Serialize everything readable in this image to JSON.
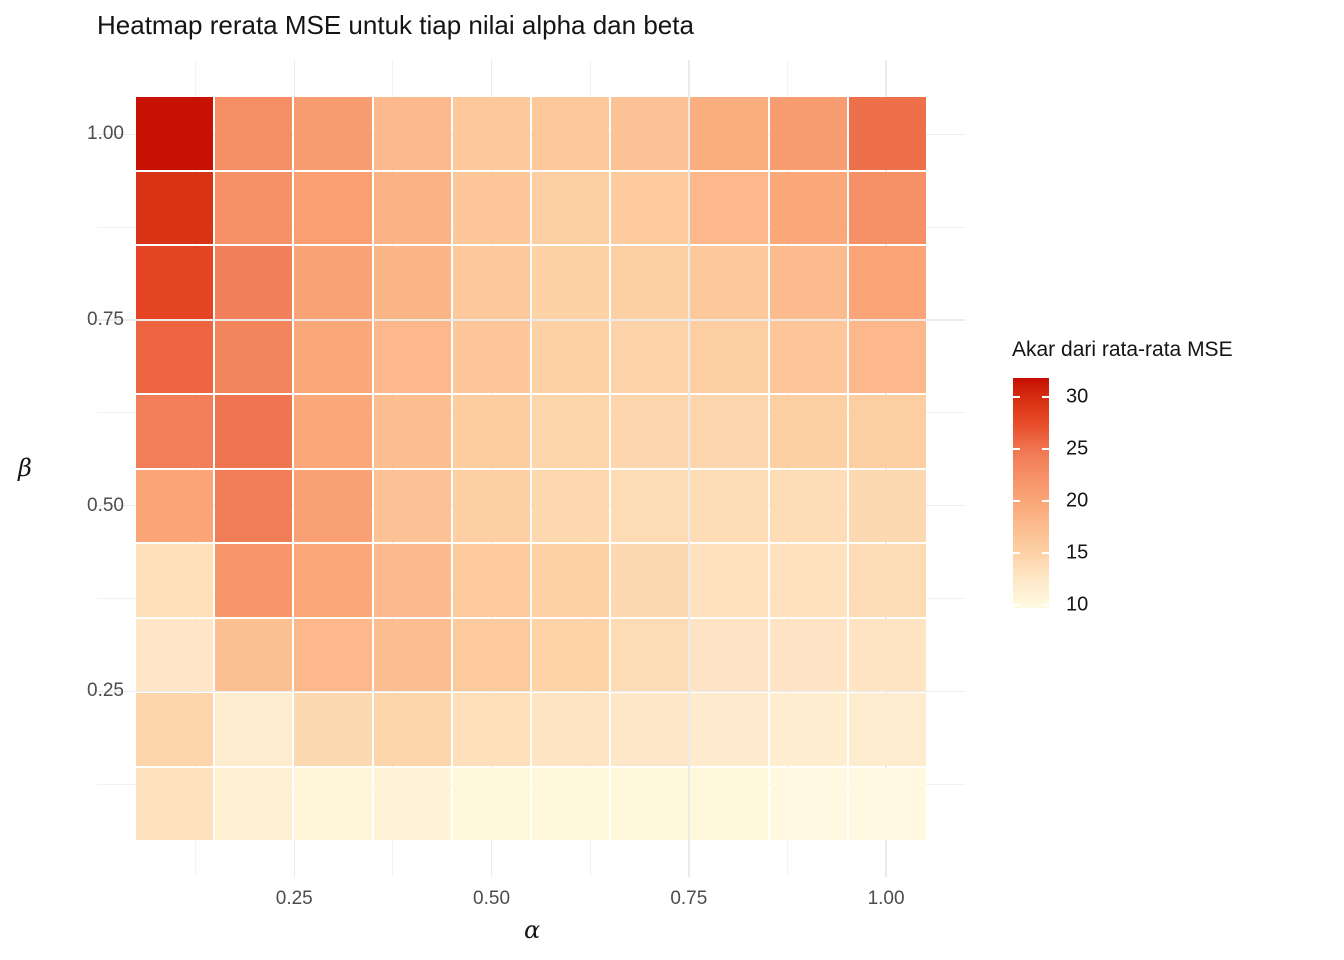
{
  "figure": {
    "title": "Heatmap rerata MSE untuk tiap nilai alpha dan beta"
  },
  "chart_data": {
    "type": "heatmap",
    "title": "Heatmap rerata MSE untuk tiap nilai alpha dan beta",
    "xlabel": "α",
    "ylabel": "β",
    "x_values": [
      0.1,
      0.2,
      0.3,
      0.4,
      0.5,
      0.6,
      0.7,
      0.8,
      0.9,
      1.0
    ],
    "y_values_top_to_bottom": [
      1.0,
      0.9,
      0.8,
      0.7,
      0.6,
      0.5,
      0.4,
      0.3,
      0.2,
      0.1
    ],
    "x_axis_tick_labels": [
      "0.25",
      "0.50",
      "0.75",
      "1.00"
    ],
    "x_axis_tick_values": [
      0.25,
      0.5,
      0.75,
      1.0
    ],
    "y_axis_tick_labels": [
      "0.25",
      "0.50",
      "0.75",
      "1.00"
    ],
    "y_axis_tick_values": [
      0.25,
      0.5,
      0.75,
      1.0
    ],
    "grid_minor_values": [
      0.125,
      0.375,
      0.625,
      0.875
    ],
    "values_sqrt_mean_mse_rows_beta_desc": [
      [
        31.6,
        22.6,
        21.0,
        17.8,
        16.0,
        16.1,
        16.8,
        19.1,
        21.0,
        25.3
      ],
      [
        29.5,
        22.4,
        20.8,
        18.6,
        16.2,
        15.5,
        15.8,
        17.9,
        19.8,
        22.3
      ],
      [
        28.0,
        23.8,
        20.3,
        18.2,
        16.0,
        15.0,
        15.2,
        16.1,
        17.6,
        20.2
      ],
      [
        26.0,
        23.5,
        19.9,
        18.0,
        16.2,
        15.1,
        14.8,
        15.4,
        16.2,
        17.9
      ],
      [
        24.0,
        25.0,
        19.9,
        17.4,
        15.6,
        14.7,
        14.5,
        14.5,
        15.2,
        15.5
      ],
      [
        20.2,
        24.2,
        20.6,
        16.8,
        15.3,
        14.4,
        13.9,
        13.8,
        13.8,
        14.2
      ],
      [
        13.5,
        21.8,
        19.8,
        17.7,
        15.9,
        15.1,
        14.2,
        13.2,
        13.2,
        13.9
      ],
      [
        12.6,
        17.0,
        18.0,
        17.3,
        15.9,
        14.9,
        13.9,
        12.8,
        12.8,
        12.9
      ],
      [
        14.7,
        11.8,
        14.2,
        14.6,
        13.5,
        12.9,
        12.5,
        11.9,
        11.6,
        11.8
      ],
      [
        13.1,
        11.2,
        10.5,
        10.6,
        10.2,
        10.1,
        10.1,
        10.0,
        9.8,
        9.8
      ]
    ],
    "legend": {
      "title": "Akar dari rata-rata MSE",
      "tick_labels": [
        "30",
        "25",
        "20",
        "15",
        "10"
      ],
      "tick_values": [
        30,
        25,
        20,
        15,
        10
      ],
      "domain": [
        9.7,
        31.8
      ]
    },
    "color_scale": {
      "stops": [
        {
          "v": 9.5,
          "c": "#FFFBE8"
        },
        {
          "v": 10.0,
          "c": "#FFF8DC"
        },
        {
          "v": 12.5,
          "c": "#FEE7C8"
        },
        {
          "v": 15.0,
          "c": "#FDD2A6"
        },
        {
          "v": 17.5,
          "c": "#FCBC8E"
        },
        {
          "v": 20.0,
          "c": "#FAA678"
        },
        {
          "v": 22.5,
          "c": "#F68F66"
        },
        {
          "v": 25.0,
          "c": "#EF7550"
        },
        {
          "v": 27.5,
          "c": "#E84A28"
        },
        {
          "v": 30.0,
          "c": "#D52D10"
        },
        {
          "v": 32.0,
          "c": "#C50A02"
        }
      ]
    },
    "style": {
      "background": "#FFFFFF",
      "grid_major_color": "#EBEBEB",
      "grid_minor_color": "#F2F2F2",
      "axis_text_color": "#4D4D4D",
      "title_color": "#141414",
      "tile_border_color": "#FFFFFF"
    },
    "layout_hints": {
      "legend_position": "right",
      "grid": "majors and minors visible in panel expansion margins only",
      "x_range": [
        0.0,
        1.1
      ],
      "y_range": [
        0.0,
        1.1
      ]
    }
  }
}
